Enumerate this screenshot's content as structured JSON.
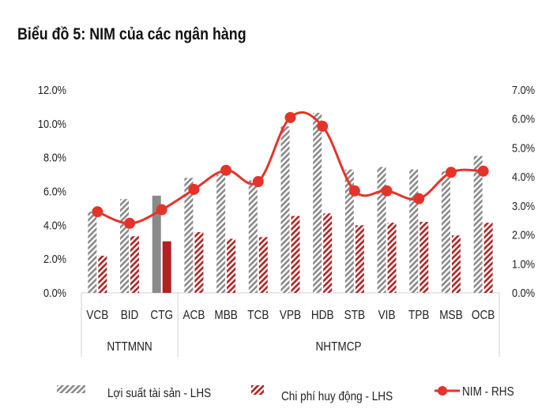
{
  "chart_data": {
    "type": "bar+line",
    "title": "Biểu đồ 5: NIM của các ngân hàng",
    "categories": [
      "VCB",
      "BID",
      "CTG",
      "ACB",
      "MBB",
      "TCB",
      "VPB",
      "HDB",
      "STB",
      "VIB",
      "TPB",
      "MSB",
      "OCB"
    ],
    "groups": [
      {
        "label": "NTTMNN",
        "categories": [
          "VCB",
          "BID",
          "CTG"
        ]
      },
      {
        "label": "NHTMCP",
        "categories": [
          "ACB",
          "MBB",
          "TCB",
          "VPB",
          "HDB",
          "STB",
          "VIB",
          "TPB",
          "MSB",
          "OCB"
        ]
      }
    ],
    "left_axis": {
      "ylim": [
        0,
        12
      ],
      "ticks": [
        "0.0%",
        "2.0%",
        "4.0%",
        "6.0%",
        "8.0%",
        "10.0%",
        "12.0%"
      ]
    },
    "right_axis": {
      "ylim": [
        0,
        7
      ],
      "ticks": [
        "0.0%",
        "1.0%",
        "2.0%",
        "3.0%",
        "4.0%",
        "5.0%",
        "6.0%",
        "7.0%"
      ]
    },
    "series": [
      {
        "name": "Lợi suất tài sản - LHS",
        "type": "bar",
        "axis": "left",
        "color": "#8a8a8a",
        "values": [
          4.8,
          5.55,
          5.75,
          6.8,
          7.0,
          6.65,
          9.85,
          10.65,
          7.3,
          7.45,
          7.3,
          7.2,
          8.1
        ]
      },
      {
        "name": "Chi phí huy động - LHS",
        "type": "bar",
        "axis": "left",
        "color": "#b22222",
        "values": [
          2.2,
          3.35,
          3.05,
          3.6,
          3.2,
          3.3,
          4.55,
          4.7,
          4.0,
          4.15,
          4.2,
          3.4,
          4.15
        ]
      },
      {
        "name": "NIM - RHS",
        "type": "line",
        "axis": "right",
        "color": "#e63329",
        "values": [
          2.8,
          2.4,
          2.87,
          3.57,
          4.23,
          3.84,
          6.05,
          5.75,
          3.52,
          3.52,
          3.25,
          4.16,
          4.2
        ]
      }
    ],
    "highlight_category": "CTG",
    "grid": false,
    "legend": "bottom"
  }
}
